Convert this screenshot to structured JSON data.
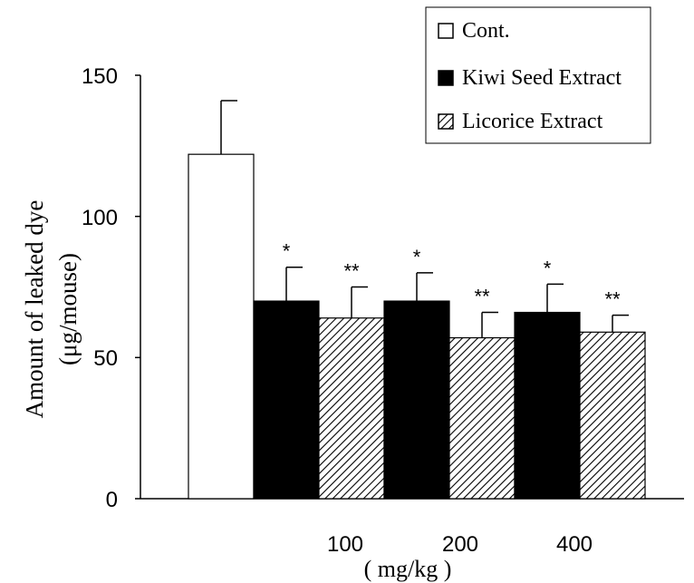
{
  "chart_data": {
    "type": "bar",
    "title": "",
    "ylabel_line1": "Amount of leaked dye",
    "ylabel_line2": "(μg/mouse)",
    "xlabel": "( mg/kg )",
    "ylim": [
      0,
      150
    ],
    "yticks": [
      0,
      50,
      100,
      150
    ],
    "ytick_labels": [
      "0",
      "50",
      "100",
      "150"
    ],
    "grid": false,
    "legend_position": "top-right",
    "groups": [
      {
        "label": "",
        "bars": [
          {
            "series": "Cont.",
            "value": 122,
            "error": 19,
            "sig": ""
          }
        ]
      },
      {
        "label": "100",
        "bars": [
          {
            "series": "Kiwi Seed Extract",
            "value": 70,
            "error": 12,
            "sig": "*"
          },
          {
            "series": "Licorice Extract",
            "value": 64,
            "error": 11,
            "sig": "**"
          }
        ]
      },
      {
        "label": "200",
        "bars": [
          {
            "series": "Kiwi Seed Extract",
            "value": 70,
            "error": 10,
            "sig": "*"
          },
          {
            "series": "Licorice Extract",
            "value": 57,
            "error": 9,
            "sig": "**"
          }
        ]
      },
      {
        "label": "400",
        "bars": [
          {
            "series": "Kiwi Seed Extract",
            "value": 66,
            "error": 10,
            "sig": "*"
          },
          {
            "series": "Licorice Extract",
            "value": 59,
            "error": 6,
            "sig": "**"
          }
        ]
      }
    ],
    "series": [
      {
        "name": "Cont.",
        "fill": "#ffffff",
        "pattern": "none"
      },
      {
        "name": "Kiwi Seed Extract",
        "fill": "#000000",
        "pattern": "none"
      },
      {
        "name": "Licorice Extract",
        "fill": "#ffffff",
        "pattern": "diagonal-hatch"
      }
    ],
    "colors": {
      "ink": "#000000",
      "background": "#ffffff"
    }
  }
}
